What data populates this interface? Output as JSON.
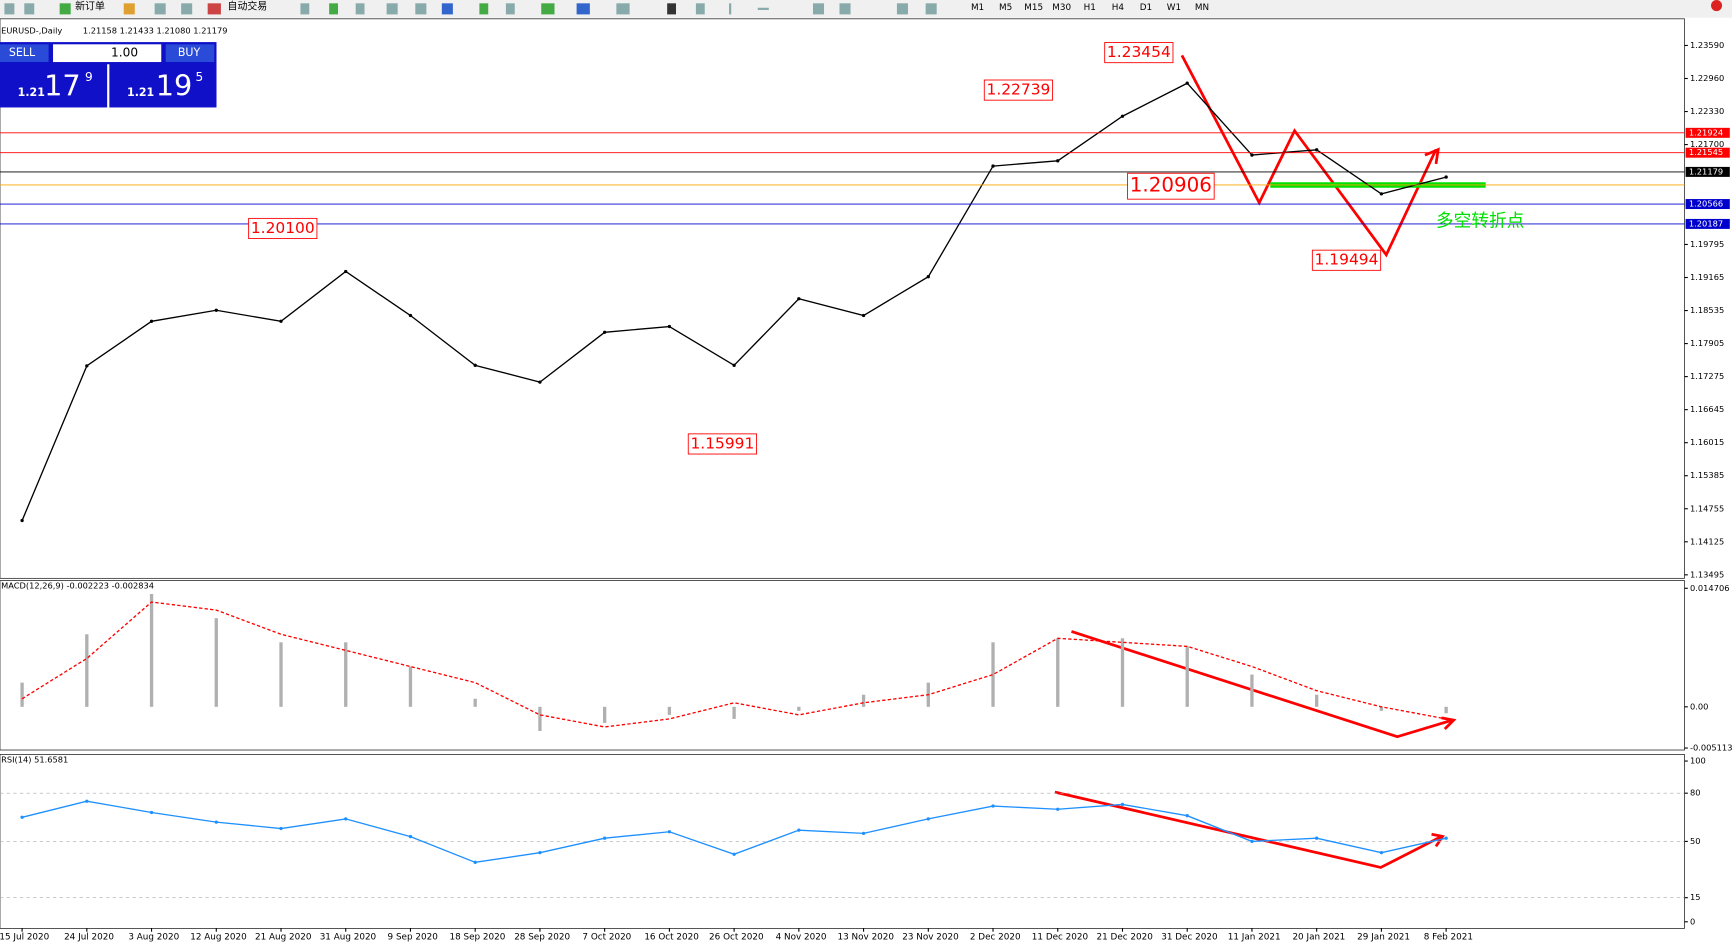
{
  "toolbar": {
    "new_order": "新订单",
    "auto_trading": "自动交易",
    "timeframes": [
      "M1",
      "M5",
      "M15",
      "M30",
      "H1",
      "H4",
      "D1",
      "W1",
      "MN"
    ]
  },
  "trade_panel": {
    "sell": "SELL",
    "buy": "BUY",
    "lots": "1.00",
    "bid": {
      "big": "1.21",
      "pips": "17",
      "frac": "9"
    },
    "ask": {
      "big": "1.21",
      "pips": "19",
      "frac": "5"
    }
  },
  "chart_data": [
    {
      "type": "line",
      "title": "EURUSD-,Daily",
      "quote": "1.21158 1.21433 1.21080 1.21179",
      "color": "#000000",
      "x": [
        "15 Jul 2020",
        "24 Jul 2020",
        "3 Aug 2020",
        "12 Aug 2020",
        "21 Aug 2020",
        "31 Aug 2020",
        "9 Sep 2020",
        "18 Sep 2020",
        "28 Sep 2020",
        "7 Oct 2020",
        "16 Oct 2020",
        "26 Oct 2020",
        "4 Nov 2020",
        "13 Nov 2020",
        "23 Nov 2020",
        "2 Dec 2020",
        "11 Dec 2020",
        "21 Dec 2020",
        "31 Dec 2020",
        "11 Jan 2021",
        "20 Jan 2021",
        "29 Jan 2021",
        "8 Feb 2021"
      ],
      "values": [
        1.1453,
        1.1748,
        1.1833,
        1.1854,
        1.1833,
        1.1928,
        1.1844,
        1.1749,
        1.1717,
        1.1812,
        1.1823,
        1.1749,
        1.1876,
        1.1844,
        1.1918,
        1.2129,
        1.2139,
        1.2224,
        1.2287,
        1.215,
        1.216,
        1.2076,
        1.2108
      ],
      "ylim": [
        1.1345,
        1.2395
      ],
      "yticks": [
        {
          "value": 1.2359,
          "label": "1.23590"
        },
        {
          "value": 1.2296,
          "label": "1.22960"
        },
        {
          "value": 1.2233,
          "label": "1.22330"
        },
        {
          "value": 1.217,
          "label": "1.21700"
        },
        {
          "value": 1.19795,
          "label": "1.19795"
        },
        {
          "value": 1.19165,
          "label": "1.19165"
        },
        {
          "value": 1.18535,
          "label": "1.18535"
        },
        {
          "value": 1.17905,
          "label": "1.17905"
        },
        {
          "value": 1.17275,
          "label": "1.17275"
        },
        {
          "value": 1.16645,
          "label": "1.16645"
        },
        {
          "value": 1.16015,
          "label": "1.16015"
        },
        {
          "value": 1.15385,
          "label": "1.15385"
        },
        {
          "value": 1.14755,
          "label": "1.14755"
        },
        {
          "value": 1.14125,
          "label": "1.14125"
        },
        {
          "value": 1.13495,
          "label": "1.13495"
        }
      ],
      "levels": [
        {
          "value": 1.21924,
          "label": "1.21924",
          "color": "#ff0000"
        },
        {
          "value": 1.21545,
          "label": "1.21545",
          "color": "#ff0000"
        },
        {
          "value": 1.21179,
          "label": "1.21179",
          "color": "#000000"
        },
        {
          "value": 1.2093,
          "color": "#ffa500"
        },
        {
          "value": 1.20566,
          "label": "1.20566",
          "color": "#0000cc"
        },
        {
          "value": 1.20187,
          "label": "1.20187",
          "color": "#0000cc"
        }
      ],
      "annotations": [
        {
          "value": 1.23454,
          "label": "1.23454"
        },
        {
          "value": 1.22739,
          "label": "1.22739"
        },
        {
          "value": 1.201,
          "label": "1.20100"
        },
        {
          "value": 1.15991,
          "label": "1.15991"
        },
        {
          "value": 1.19494,
          "label": "1.19494"
        },
        {
          "value": 1.20906,
          "label": "1.20906"
        }
      ],
      "note": "多空转折点"
    },
    {
      "type": "bar",
      "title": "MACD(12,26,9) -0.002223 -0.002834",
      "series": [
        {
          "color": "#b0b0b0",
          "values": [
            0.003,
            0.009,
            0.014,
            0.011,
            0.008,
            0.008,
            0.005,
            0.001,
            -0.003,
            -0.002,
            -0.001,
            -0.0015,
            -0.0005,
            0.0015,
            0.003,
            0.008,
            0.0085,
            0.0085,
            0.0075,
            0.004,
            0.0015,
            -0.0005,
            -0.0008
          ]
        },
        {
          "color": "#ff0000",
          "values": [
            0.001,
            0.006,
            0.013,
            0.012,
            0.009,
            0.007,
            0.005,
            0.003,
            -0.001,
            -0.0025,
            -0.0015,
            0.0005,
            -0.001,
            0.0005,
            0.0015,
            0.004,
            0.0085,
            0.008,
            0.0075,
            0.005,
            0.002,
            0,
            -0.0015
          ]
        }
      ],
      "ylim": [
        -0.00536,
        0.01567
      ],
      "yticks": [
        0.014706,
        {
          "value": 0,
          "label": "0.00"
        },
        -0.005113
      ]
    },
    {
      "type": "line",
      "title": "RSI(14) 51.6581",
      "color": "#1e90ff",
      "values": [
        65,
        75,
        68,
        62,
        58,
        64,
        53,
        37,
        43,
        52,
        56,
        42,
        57,
        55,
        64,
        72,
        70,
        73,
        66,
        50,
        52,
        43,
        52
      ],
      "ylim": [
        -4.1,
        104.1
      ],
      "yticks": [
        100,
        80,
        50,
        15,
        0
      ],
      "grid_ticks": [
        80,
        50,
        15
      ]
    }
  ]
}
